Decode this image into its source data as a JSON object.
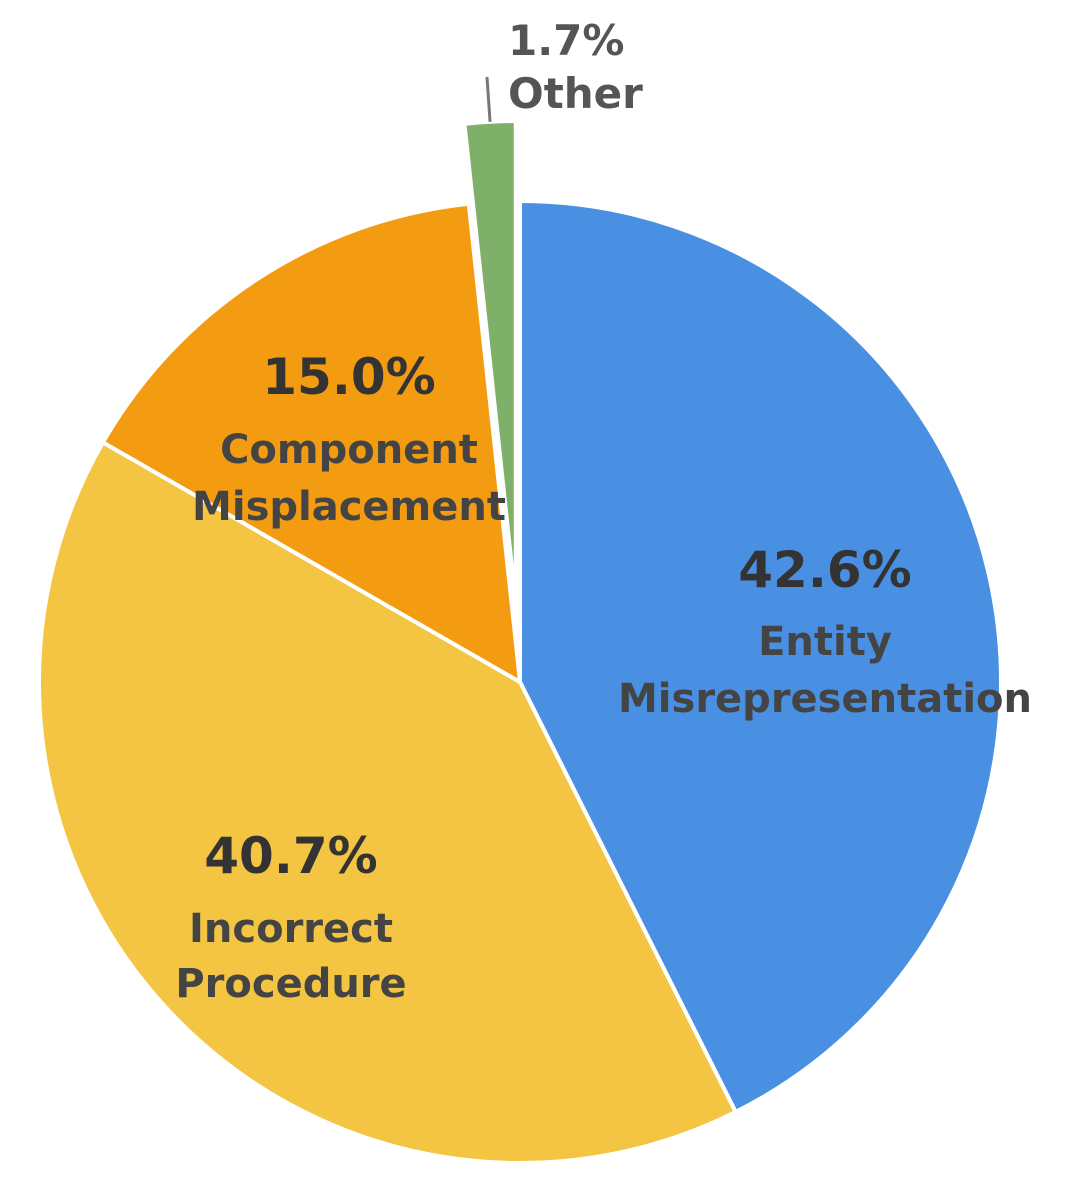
{
  "chart_data": {
    "type": "pie",
    "start_angle_deg": 90,
    "direction": "clockwise",
    "slices": [
      {
        "name": "Entity Misrepresentation",
        "label_lines": [
          "Entity",
          "Misrepresentation"
        ],
        "value": 42.6,
        "pct_label": "42.6%",
        "color": "#4A90E2",
        "exploded": false,
        "label_placement": "inside"
      },
      {
        "name": "Incorrect Procedure",
        "label_lines": [
          "Incorrect",
          "Procedure"
        ],
        "value": 40.7,
        "pct_label": "40.7%",
        "color": "#F4C542",
        "exploded": false,
        "label_placement": "inside"
      },
      {
        "name": "Component Misplacement",
        "label_lines": [
          "Component",
          "Misplacement"
        ],
        "value": 15.0,
        "pct_label": "15.0%",
        "color": "#F39C12",
        "exploded": false,
        "label_placement": "inside"
      },
      {
        "name": "Other",
        "label_lines": [
          "Other"
        ],
        "value": 1.7,
        "pct_label": "1.7%",
        "color": "#7FB069",
        "exploded": true,
        "label_placement": "outside"
      }
    ]
  }
}
